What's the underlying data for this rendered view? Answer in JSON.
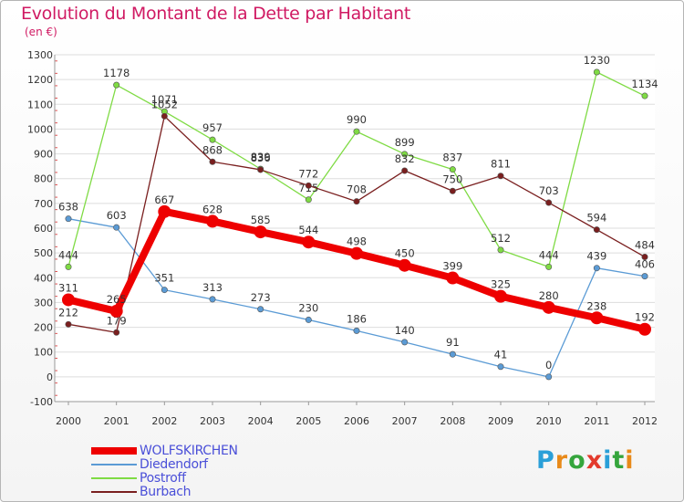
{
  "title": "Evolution du Montant de la Dette par Habitant",
  "unit_label": "(en €)",
  "logo": {
    "text": "Proxiti",
    "letter_colors": [
      "#2a9fd8",
      "#e88a1a",
      "#35a53c",
      "#e33a2c",
      "#2a9fd8",
      "#35a53c",
      "#e88a1a"
    ]
  },
  "chart_data": {
    "type": "line",
    "title": "Evolution du Montant de la Dette par Habitant",
    "subtitle": "(en €)",
    "x": [
      "2000",
      "2001",
      "2002",
      "2003",
      "2004",
      "2005",
      "2006",
      "2007",
      "2008",
      "2009",
      "2010",
      "2011",
      "2012"
    ],
    "ylim": [
      -100,
      1300
    ],
    "yticks": [
      -100,
      0,
      100,
      200,
      300,
      400,
      500,
      600,
      700,
      800,
      900,
      1000,
      1100,
      1200,
      1300
    ],
    "grid": "horizontal",
    "legend_position": "bottom-left",
    "series": [
      {
        "name": "WOLFSKIRCHEN",
        "color": "#ee0000",
        "values": [
          311,
          265,
          667,
          628,
          585,
          544,
          498,
          450,
          399,
          325,
          280,
          238,
          192
        ]
      },
      {
        "name": "Diedendorf",
        "color": "#5b9bd5",
        "values": [
          638,
          603,
          351,
          313,
          273,
          230,
          186,
          140,
          91,
          41,
          0,
          439,
          406
        ]
      },
      {
        "name": "Postroff",
        "color": "#7fdb44",
        "values": [
          444,
          1178,
          1071,
          957,
          839,
          715,
          990,
          899,
          837,
          512,
          444,
          1230,
          1134
        ]
      },
      {
        "name": "Burbach",
        "color": "#7a1f1f",
        "values": [
          212,
          179,
          1052,
          868,
          836,
          772,
          708,
          832,
          750,
          811,
          703,
          594,
          484
        ]
      }
    ]
  }
}
